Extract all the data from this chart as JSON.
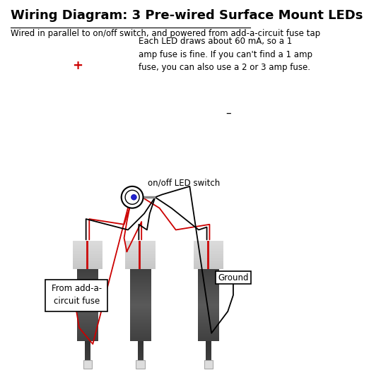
{
  "title": "Wiring Diagram: 3 Pre-wired Surface Mount LEDs",
  "subtitle": "Wired in parallel to on/off switch, and powered from add-a-circuit fuse tap",
  "note": "Each LED draws about 60 mA, so a 1\namp fuse is fine. If you can't find a 1 amp\nfuse, you can also use a 2 or 3 amp fuse.",
  "fuse_label": "From add-a-\ncircuit fuse",
  "ground_label": "Ground",
  "switch_label": "on/off LED switch",
  "plus_sign": "+",
  "minus_sign": "–",
  "bg_color": "#ffffff",
  "title_color": "#000000",
  "red_wire_color": "#cc0000",
  "black_wire_color": "#000000",
  "box_edge_color": "#000000",
  "note_fontsize": 8.5,
  "title_fontsize": 13,
  "subtitle_fontsize": 8.5,
  "label_fontsize": 8.5,
  "switch_fontsize": 8.5,
  "lw": 1.3
}
